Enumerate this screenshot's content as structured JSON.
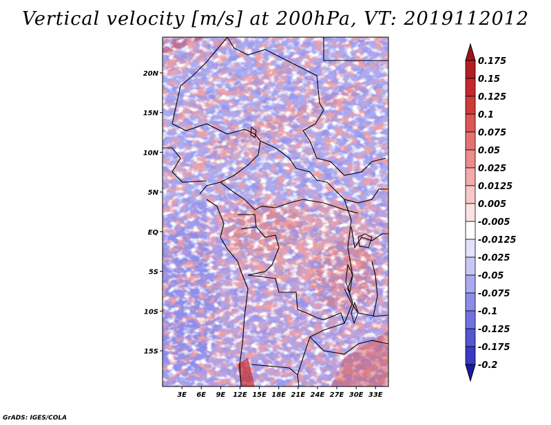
{
  "title": "Vertical velocity [m/s] at 200hPa, VT: 2019112012",
  "credit": "GrADS: IGES/COLA",
  "map": {
    "lat_range": [
      -19.5,
      24.5
    ],
    "lon_range": [
      0,
      35
    ],
    "lat_ticks": [
      {
        "value": 20,
        "label": "20N"
      },
      {
        "value": 15,
        "label": "15N"
      },
      {
        "value": 10,
        "label": "10N"
      },
      {
        "value": 5,
        "label": "5N"
      },
      {
        "value": 0,
        "label": "EQ"
      },
      {
        "value": -5,
        "label": "5S"
      },
      {
        "value": -10,
        "label": "10S"
      },
      {
        "value": -15,
        "label": "15S"
      }
    ],
    "lon_ticks": [
      {
        "value": 3,
        "label": "3E"
      },
      {
        "value": 6,
        "label": "6E"
      },
      {
        "value": 9,
        "label": "9E"
      },
      {
        "value": 12,
        "label": "12E"
      },
      {
        "value": 15,
        "label": "15E"
      },
      {
        "value": 18,
        "label": "18E"
      },
      {
        "value": 21,
        "label": "21E"
      },
      {
        "value": 24,
        "label": "24E"
      },
      {
        "value": 27,
        "label": "27E"
      },
      {
        "value": 30,
        "label": "30E"
      },
      {
        "value": 33,
        "label": "33E"
      }
    ]
  },
  "colorbar": {
    "levels": [
      {
        "label": "0.175",
        "color": "#b31e23"
      },
      {
        "label": "0.15",
        "color": "#c4282c"
      },
      {
        "label": "0.125",
        "color": "#d23a3a"
      },
      {
        "label": "0.1",
        "color": "#dd5555"
      },
      {
        "label": "0.075",
        "color": "#e57272"
      },
      {
        "label": "0.05",
        "color": "#ec8c8c"
      },
      {
        "label": "0.025",
        "color": "#f2aaaa"
      },
      {
        "label": "0.0125",
        "color": "#f7c8c8"
      },
      {
        "label": "0.005",
        "color": "#fbe2e2"
      },
      {
        "label": "-0.005",
        "color": "#ffffff"
      },
      {
        "label": "-0.0125",
        "color": "#e2e2fb"
      },
      {
        "label": "-0.025",
        "color": "#c8c8f6"
      },
      {
        "label": "-0.05",
        "color": "#aaaaf0"
      },
      {
        "label": "-0.075",
        "color": "#8c8ce8"
      },
      {
        "label": "-0.1",
        "color": "#7272df"
      },
      {
        "label": "-0.125",
        "color": "#5555d3"
      },
      {
        "label": "-0.175",
        "color": "#3a3ac4"
      },
      {
        "label": "-0.2",
        "color": "#2828b3"
      }
    ],
    "top_color": "#a01419",
    "bottom_color": "#1a1aa0"
  }
}
